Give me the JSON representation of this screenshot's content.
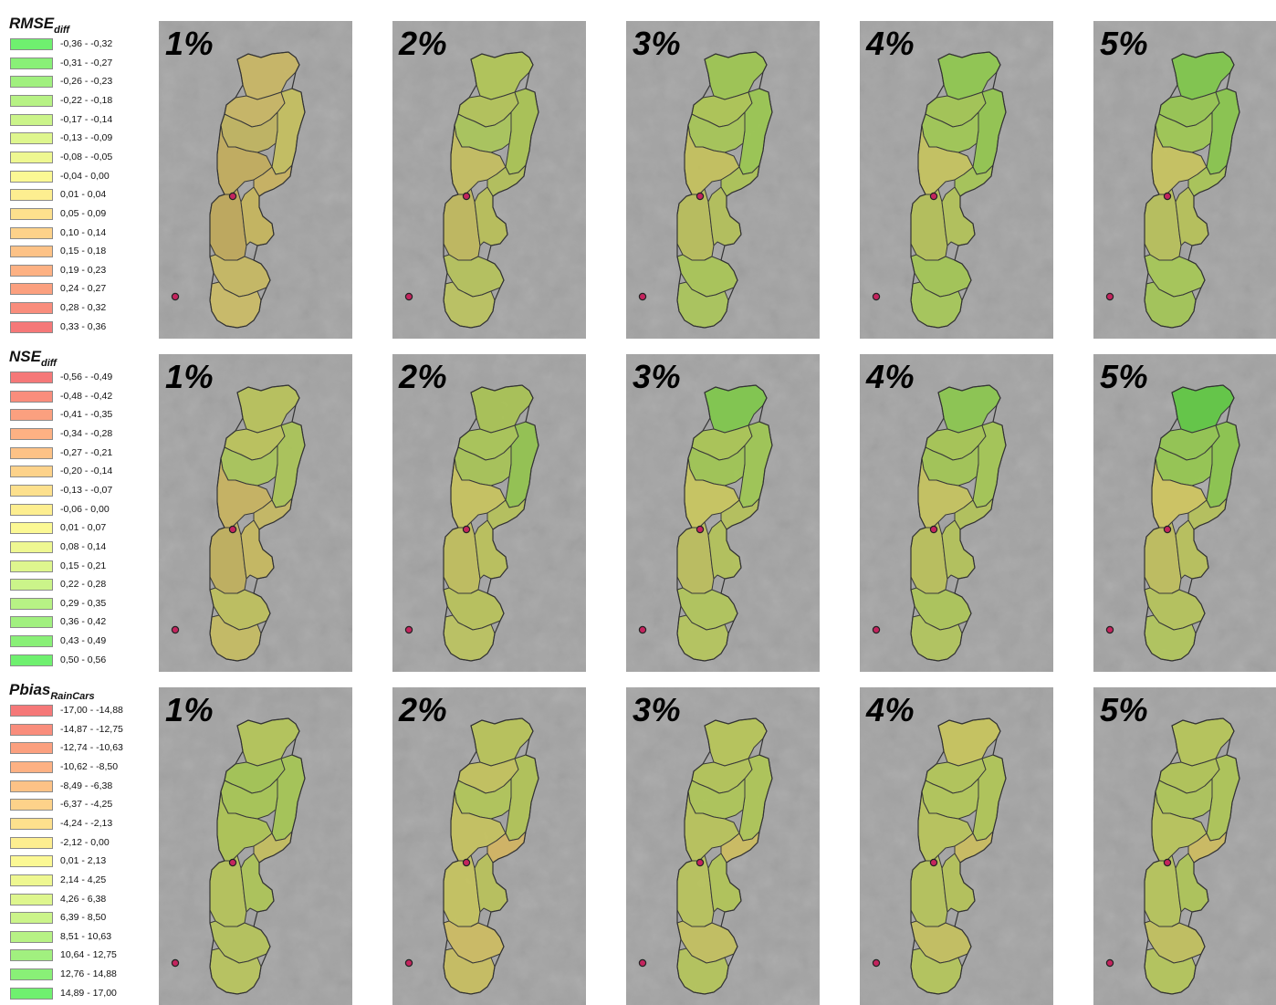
{
  "legends": [
    {
      "title": "RMSE",
      "subscript": "diff",
      "items": [
        {
          "label": "-0,36 - -0,32",
          "color": "#6ff06f"
        },
        {
          "label": "-0,31 - -0,27",
          "color": "#89f077"
        },
        {
          "label": "-0,26 - -0,23",
          "color": "#a1f07f"
        },
        {
          "label": "-0,22 - -0,18",
          "color": "#b7f285"
        },
        {
          "label": "-0,17 - -0,14",
          "color": "#cbf48a"
        },
        {
          "label": "-0,13 - -0,09",
          "color": "#def68e"
        },
        {
          "label": "-0,08 - -0,05",
          "color": "#eef791"
        },
        {
          "label": "-0,04 - 0,00",
          "color": "#fbf894"
        },
        {
          "label": "0,01 - 0,04",
          "color": "#fdee90"
        },
        {
          "label": "0,05 - 0,09",
          "color": "#fde08d"
        },
        {
          "label": "0,10 - 0,14",
          "color": "#fdd28a"
        },
        {
          "label": "0,15 - 0,18",
          "color": "#fdc286"
        },
        {
          "label": "0,19 - 0,23",
          "color": "#fdb183"
        },
        {
          "label": "0,24 - 0,27",
          "color": "#fba07f"
        },
        {
          "label": "0,28 - 0,32",
          "color": "#f98d7c"
        },
        {
          "label": "0,33 - 0,36",
          "color": "#f57878"
        }
      ]
    },
    {
      "title": "NSE",
      "subscript": "diff",
      "items": [
        {
          "label": "-0,56 - -0,49",
          "color": "#f57878"
        },
        {
          "label": "-0,48 - -0,42",
          "color": "#f98d7c"
        },
        {
          "label": "-0,41 - -0,35",
          "color": "#fba07f"
        },
        {
          "label": "-0,34 - -0,28",
          "color": "#fdb183"
        },
        {
          "label": "-0,27 - -0,21",
          "color": "#fdc286"
        },
        {
          "label": "-0,20 - -0,14",
          "color": "#fdd28a"
        },
        {
          "label": "-0,13 - -0,07",
          "color": "#fde08d"
        },
        {
          "label": "-0,06 - 0,00",
          "color": "#fdee90"
        },
        {
          "label": "0,01 - 0,07",
          "color": "#fbf894"
        },
        {
          "label": "0,08 - 0,14",
          "color": "#eef791"
        },
        {
          "label": "0,15 - 0,21",
          "color": "#def68e"
        },
        {
          "label": "0,22 - 0,28",
          "color": "#cbf48a"
        },
        {
          "label": "0,29 - 0,35",
          "color": "#b7f285"
        },
        {
          "label": "0,36 - 0,42",
          "color": "#a1f07f"
        },
        {
          "label": "0,43 - 0,49",
          "color": "#89f077"
        },
        {
          "label": "0,50 - 0,56",
          "color": "#6ff06f"
        }
      ]
    },
    {
      "title": "Pbias",
      "subscript": "RainCars",
      "items": [
        {
          "label": "-17,00 - -14,88",
          "color": "#f57878"
        },
        {
          "label": "-14,87 - -12,75",
          "color": "#f98d7c"
        },
        {
          "label": "-12,74 - -10,63",
          "color": "#fba07f"
        },
        {
          "label": "-10,62 - -8,50",
          "color": "#fdb183"
        },
        {
          "label": "-8,49 - -6,38",
          "color": "#fdc286"
        },
        {
          "label": "-6,37 - -4,25",
          "color": "#fdd28a"
        },
        {
          "label": "-4,24 - -2,13",
          "color": "#fde08d"
        },
        {
          "label": "-2,12 - 0,00",
          "color": "#fdee90"
        },
        {
          "label": "0,01 - 2,13",
          "color": "#fbf894"
        },
        {
          "label": "2,14 - 4,25",
          "color": "#eef791"
        },
        {
          "label": "4,26 - 6,38",
          "color": "#def68e"
        },
        {
          "label": "6,39 - 8,50",
          "color": "#cbf48a"
        },
        {
          "label": "8,51 - 10,63",
          "color": "#b7f285"
        },
        {
          "label": "10,64 - 12,75",
          "color": "#a1f07f"
        },
        {
          "label": "12,76 - 14,88",
          "color": "#89f077"
        },
        {
          "label": "14,89 - 17,00",
          "color": "#6ff06f"
        }
      ]
    }
  ],
  "columns": [
    "1%",
    "2%",
    "3%",
    "4%",
    "5%"
  ],
  "rows": [
    {
      "metric": "RMSE diff",
      "panels": [
        [
          "#c9b664",
          "#c9b664",
          "#c4bf5e",
          "#c0b460",
          "#c2ad5c",
          "#c9b260",
          "#bfa85a",
          "#c5b55c",
          "#c7b962",
          "#cbbc66"
        ],
        [
          "#b1c556",
          "#b3c358",
          "#a9c352",
          "#a9c65a",
          "#c4be60",
          "#b3c059",
          "#c0b95c",
          "#b8bf58",
          "#b5c25b",
          "#bcc35f"
        ],
        [
          "#9dc550",
          "#aec654",
          "#9ac750",
          "#a6c556",
          "#c4c15c",
          "#adc356",
          "#b8be5a",
          "#b3c059",
          "#a9c556",
          "#aac65a"
        ],
        [
          "#8fc84e",
          "#a3c652",
          "#92c64e",
          "#a0c854",
          "#c6c35e",
          "#a6c556",
          "#b4c058",
          "#b2c258",
          "#a3c654",
          "#a6c858"
        ],
        [
          "#7fc74a",
          "#97c650",
          "#89c64c",
          "#9ec852",
          "#c8c35e",
          "#a9c556",
          "#b7c05a",
          "#b6c158",
          "#a6c856",
          "#a3c656"
        ]
      ]
    },
    {
      "metric": "NSE diff",
      "panels": [
        [
          "#b8c25a",
          "#bcc35a",
          "#aac457",
          "#a9c659",
          "#c8b35f",
          "#c6b962",
          "#c0b05c",
          "#c7b85e",
          "#bec05c",
          "#c6bc62"
        ],
        [
          "#a8c254",
          "#a9c656",
          "#93c34e",
          "#a7c356",
          "#c8c35e",
          "#b5c15a",
          "#c0be5c",
          "#bbc15a",
          "#b8c25a",
          "#bcc35f"
        ],
        [
          "#7fc84b",
          "#aac554",
          "#9ec752",
          "#9fc653",
          "#c9c75e",
          "#b5c15a",
          "#bcbe5c",
          "#b3c259",
          "#b1c55a",
          "#b5c55c"
        ],
        [
          "#8bc74e",
          "#a6c653",
          "#a4c754",
          "#a2c654",
          "#c6c35e",
          "#b2c259",
          "#bac05a",
          "#b3c259",
          "#adc658",
          "#b2c65c"
        ],
        [
          "#5fc842",
          "#92c54f",
          "#8bc64c",
          "#95c74f",
          "#cfc660",
          "#b5c15a",
          "#bfbe5c",
          "#b9c15a",
          "#b5c35a",
          "#b1c55b"
        ]
      ]
    },
    {
      "metric": "Pbias RainCars",
      "panels": [
        [
          "#b4c558",
          "#a3c452",
          "#a5c654",
          "#a7c654",
          "#aec454",
          "#c4be5e",
          "#b5c359",
          "#adc457",
          "#b5c35a",
          "#b8c45c"
        ],
        [
          "#b8c358",
          "#c3c25c",
          "#b1c356",
          "#b1c558",
          "#c5c25e",
          "#d2b462",
          "#c6c35e",
          "#b8c15a",
          "#cdbc62",
          "#c8be60"
        ],
        [
          "#b7c558",
          "#b3c457",
          "#aec556",
          "#aec657",
          "#b9c35a",
          "#cdbd60",
          "#b9c35b",
          "#b1c457",
          "#c3c05e",
          "#b4c45a"
        ],
        [
          "#c8c45c",
          "#b2c557",
          "#b0c556",
          "#b2c758",
          "#b8c45a",
          "#cbbd5f",
          "#b5c35a",
          "#b4c258",
          "#c4c05e",
          "#b4c55a"
        ],
        [
          "#b6c558",
          "#b1c456",
          "#aec556",
          "#aec657",
          "#b9c45a",
          "#cdbc60",
          "#b6c45a",
          "#aec457",
          "#c1c05d",
          "#b4c55a"
        ]
      ]
    }
  ]
}
